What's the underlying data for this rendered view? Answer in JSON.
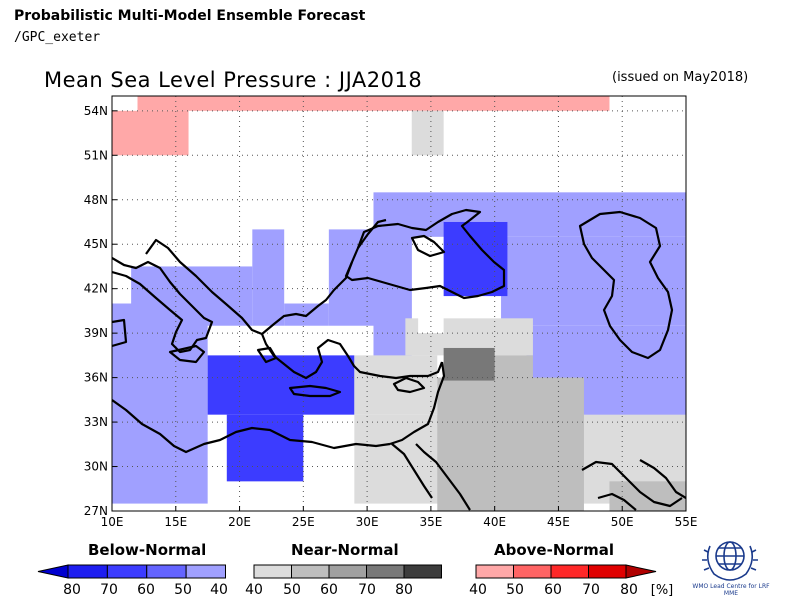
{
  "header": {
    "title": "Probabilistic Multi-Model Ensemble Forecast",
    "source": "/GPC_exeter"
  },
  "map": {
    "title": "Mean Sea Level Pressure : JJA2018",
    "issued": "(issued on May2018)",
    "extent": {
      "lon": [
        10,
        55
      ],
      "lat": [
        27,
        55
      ]
    },
    "lon_ticks": [
      "10E",
      "15E",
      "20E",
      "25E",
      "30E",
      "35E",
      "40E",
      "45E",
      "50E",
      "55E"
    ],
    "lat_ticks": [
      "27N",
      "30N",
      "33N",
      "36N",
      "39N",
      "42N",
      "45N",
      "48N",
      "51N",
      "54N"
    ],
    "grid": "dotted, every 5° longitude and 3° latitude",
    "cell_size_deg": 2.5
  },
  "legend": {
    "below": {
      "title": "Below-Normal",
      "labels": [
        "80",
        "70",
        "60",
        "50",
        "40"
      ],
      "colors": [
        "#0000d0",
        "#1e1ef0",
        "#3c3cff",
        "#6464ff",
        "#a0a0ff"
      ]
    },
    "near": {
      "title": "Near-Normal",
      "labels": [
        "40",
        "50",
        "60",
        "70",
        "80"
      ],
      "colors": [
        "#dcdcdc",
        "#bebebe",
        "#a0a0a0",
        "#787878",
        "#3c3c3c"
      ]
    },
    "above": {
      "title": "Above-Normal",
      "labels": [
        "40",
        "50",
        "60",
        "70",
        "80"
      ],
      "unit": "[%]",
      "colors": [
        "#ffa8a8",
        "#ff6464",
        "#ff2828",
        "#e00000",
        "#b00000"
      ]
    }
  },
  "logo": {
    "text": "WMO Lead Centre for LRF MME"
  },
  "forecast_cells": [
    {
      "lon": [
        12,
        49
      ],
      "lat": [
        54,
        55
      ],
      "category": "above",
      "level": 0
    },
    {
      "lon": [
        10,
        16
      ],
      "lat": [
        51,
        54
      ],
      "category": "above",
      "level": 0
    },
    {
      "lon": [
        33.5,
        36
      ],
      "lat": [
        51,
        54
      ],
      "category": "near",
      "level": 0
    },
    {
      "lon": [
        30.5,
        55
      ],
      "lat": [
        45.5,
        48.5
      ],
      "category": "below",
      "level": 0
    },
    {
      "lon": [
        40.5,
        55
      ],
      "lat": [
        39.5,
        45.5
      ],
      "category": "below",
      "level": 0
    },
    {
      "lon": [
        21,
        23.5
      ],
      "lat": [
        39.5,
        46
      ],
      "category": "below",
      "level": 0
    },
    {
      "lon": [
        27,
        33.5
      ],
      "lat": [
        39.5,
        46
      ],
      "category": "below",
      "level": 0
    },
    {
      "lon": [
        11.5,
        21
      ],
      "lat": [
        39.5,
        43.5
      ],
      "category": "below",
      "level": 0
    },
    {
      "lon": [
        23.5,
        27
      ],
      "lat": [
        39.5,
        41
      ],
      "category": "below",
      "level": 0
    },
    {
      "lon": [
        30.5,
        33.5
      ],
      "lat": [
        36.5,
        46
      ],
      "category": "below",
      "level": 0
    },
    {
      "lon": [
        10,
        17.5
      ],
      "lat": [
        27.5,
        41
      ],
      "category": "below",
      "level": 0
    },
    {
      "lon": [
        42.5,
        55
      ],
      "lat": [
        32.5,
        39.5
      ],
      "category": "below",
      "level": 0
    },
    {
      "lon": [
        54.5,
        55
      ],
      "lat": [
        29,
        32.5
      ],
      "category": "below",
      "level": 0
    },
    {
      "lon": [
        36,
        41
      ],
      "lat": [
        41.5,
        46.5
      ],
      "category": "below",
      "level": 2
    },
    {
      "lon": [
        17.5,
        29
      ],
      "lat": [
        33.5,
        37.5
      ],
      "category": "below",
      "level": 2
    },
    {
      "lon": [
        19,
        25
      ],
      "lat": [
        29,
        33.5
      ],
      "category": "below",
      "level": 2
    },
    {
      "lon": [
        33,
        43
      ],
      "lat": [
        37.5,
        40
      ],
      "category": "near",
      "level": 0
    },
    {
      "lon": [
        29,
        35.5
      ],
      "lat": [
        33.5,
        37.5
      ],
      "category": "near",
      "level": 0
    },
    {
      "lon": [
        29,
        55
      ],
      "lat": [
        27.5,
        33.5
      ],
      "category": "near",
      "level": 0
    },
    {
      "lon": [
        35.5,
        47
      ],
      "lat": [
        27,
        36
      ],
      "category": "near",
      "level": 1
    },
    {
      "lon": [
        38,
        43
      ],
      "lat": [
        35.5,
        37.5
      ],
      "category": "near",
      "level": 1
    },
    {
      "lon": [
        36,
        40
      ],
      "lat": [
        35.8,
        38
      ],
      "category": "near",
      "level": 3
    },
    {
      "lon": [
        49,
        55
      ],
      "lat": [
        27,
        29
      ],
      "category": "near",
      "level": 1
    },
    {
      "lon": [
        34,
        36
      ],
      "lat": [
        39,
        41
      ],
      "category": "none",
      "level": 0
    }
  ]
}
